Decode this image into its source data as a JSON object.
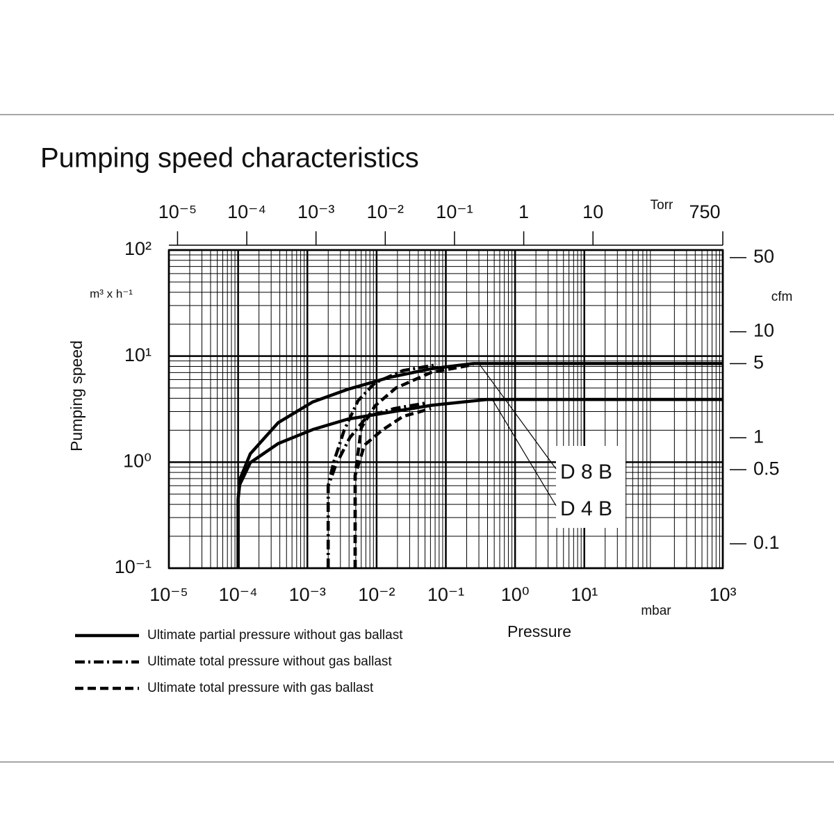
{
  "chart_data": {
    "type": "line",
    "title": "Pumping speed characteristics",
    "ylabel": "Pumping speed",
    "yunit": "m³ x h⁻¹",
    "xlabel": "Pressure",
    "xunit": "mbar",
    "x2unit": "Torr",
    "y2unit": "cfm",
    "xscale": "log",
    "yscale": "log",
    "grid": "log",
    "xlim": [
      1e-05,
      1000
    ],
    "xticks": [
      {
        "value": 1e-05,
        "label": "10⁻⁵"
      },
      {
        "value": 0.0001,
        "label": "10⁻⁴"
      },
      {
        "value": 0.001,
        "label": "10⁻³"
      },
      {
        "value": 0.01,
        "label": "10⁻²"
      },
      {
        "value": 0.1,
        "label": "10⁻¹"
      },
      {
        "value": 1,
        "label": "10⁰"
      },
      {
        "value": 10,
        "label": "10¹"
      },
      {
        "value": 1000,
        "label": "10³"
      }
    ],
    "x2lim": [
      7.5e-06,
      750
    ],
    "x2ticks": [
      {
        "value": 1e-05,
        "label": "10⁻⁵"
      },
      {
        "value": 0.0001,
        "label": "10⁻⁴"
      },
      {
        "value": 0.001,
        "label": "10⁻³"
      },
      {
        "value": 0.01,
        "label": "10⁻²"
      },
      {
        "value": 0.1,
        "label": "10⁻¹"
      },
      1,
      10,
      750
    ],
    "ylim": [
      0.1,
      100
    ],
    "yticks": [
      {
        "value": 0.1,
        "label": "10⁻¹"
      },
      {
        "value": 1,
        "label": "10⁰"
      },
      {
        "value": 10,
        "label": "10¹"
      },
      {
        "value": 100,
        "label": "10²"
      }
    ],
    "y2lim": [
      0.0589,
      58.9
    ],
    "y2ticks": [
      0.1,
      0.5,
      1,
      5,
      10,
      50
    ],
    "curve_labels": [
      "D 8 B",
      "D 4 B"
    ],
    "series": [
      {
        "name": "Ultimate partial pressure without gas ballast",
        "color": "#000000",
        "dash": "solid",
        "curves": [
          {
            "x": [
              0.0001,
              0.0001,
              0.000108,
              0.00015,
              0.00038,
              0.0012,
              0.0038,
              0.015,
              0.061,
              0.25,
              1000
            ],
            "values": [
              0.1,
              0.45,
              0.71,
              1.2,
              2.36,
              3.7,
              4.85,
              6.27,
              7.6,
              8.5,
              8.5
            ]
          },
          {
            "x": [
              0.0001,
              0.0001,
              0.000105,
              0.00015,
              0.00038,
              0.0012,
              0.0038,
              0.015,
              0.061,
              0.39,
              1000
            ],
            "values": [
              0.1,
              0.45,
              0.61,
              0.99,
              1.5,
              2.03,
              2.54,
              2.95,
              3.43,
              3.9,
              3.9
            ]
          }
        ]
      },
      {
        "name": "Ultimate total pressure without gas ballast",
        "color": "#000000",
        "dash": "dashdot",
        "curves": [
          {
            "x": [
              0.002,
              0.002,
              0.0024,
              0.0034,
              0.0054,
              0.0095,
              0.024,
              0.075
            ],
            "values": [
              0.1,
              0.6,
              1.0,
              2.0,
              3.8,
              5.6,
              7.3,
              8.3
            ]
          },
          {
            "x": [
              0.002,
              0.002,
              0.0026,
              0.0041,
              0.0073,
              0.018,
              0.05
            ],
            "values": [
              0.1,
              0.6,
              0.95,
              1.7,
              2.7,
              3.2,
              3.6
            ]
          }
        ]
      },
      {
        "name": "Ultimate total pressure with gas ballast",
        "color": "#000000",
        "dash": "dashed",
        "curves": [
          {
            "x": [
              0.0049,
              0.0049,
              0.006,
              0.0095,
              0.019,
              0.061,
              0.25
            ],
            "values": [
              0.1,
              0.75,
              2.1,
              3.4,
              5.0,
              7.0,
              8.3
            ]
          },
          {
            "x": [
              0.0049,
              0.0049,
              0.0067,
              0.012,
              0.024,
              0.061
            ],
            "values": [
              0.1,
              0.75,
              1.45,
              2.0,
              2.7,
              3.2
            ]
          }
        ]
      }
    ]
  }
}
